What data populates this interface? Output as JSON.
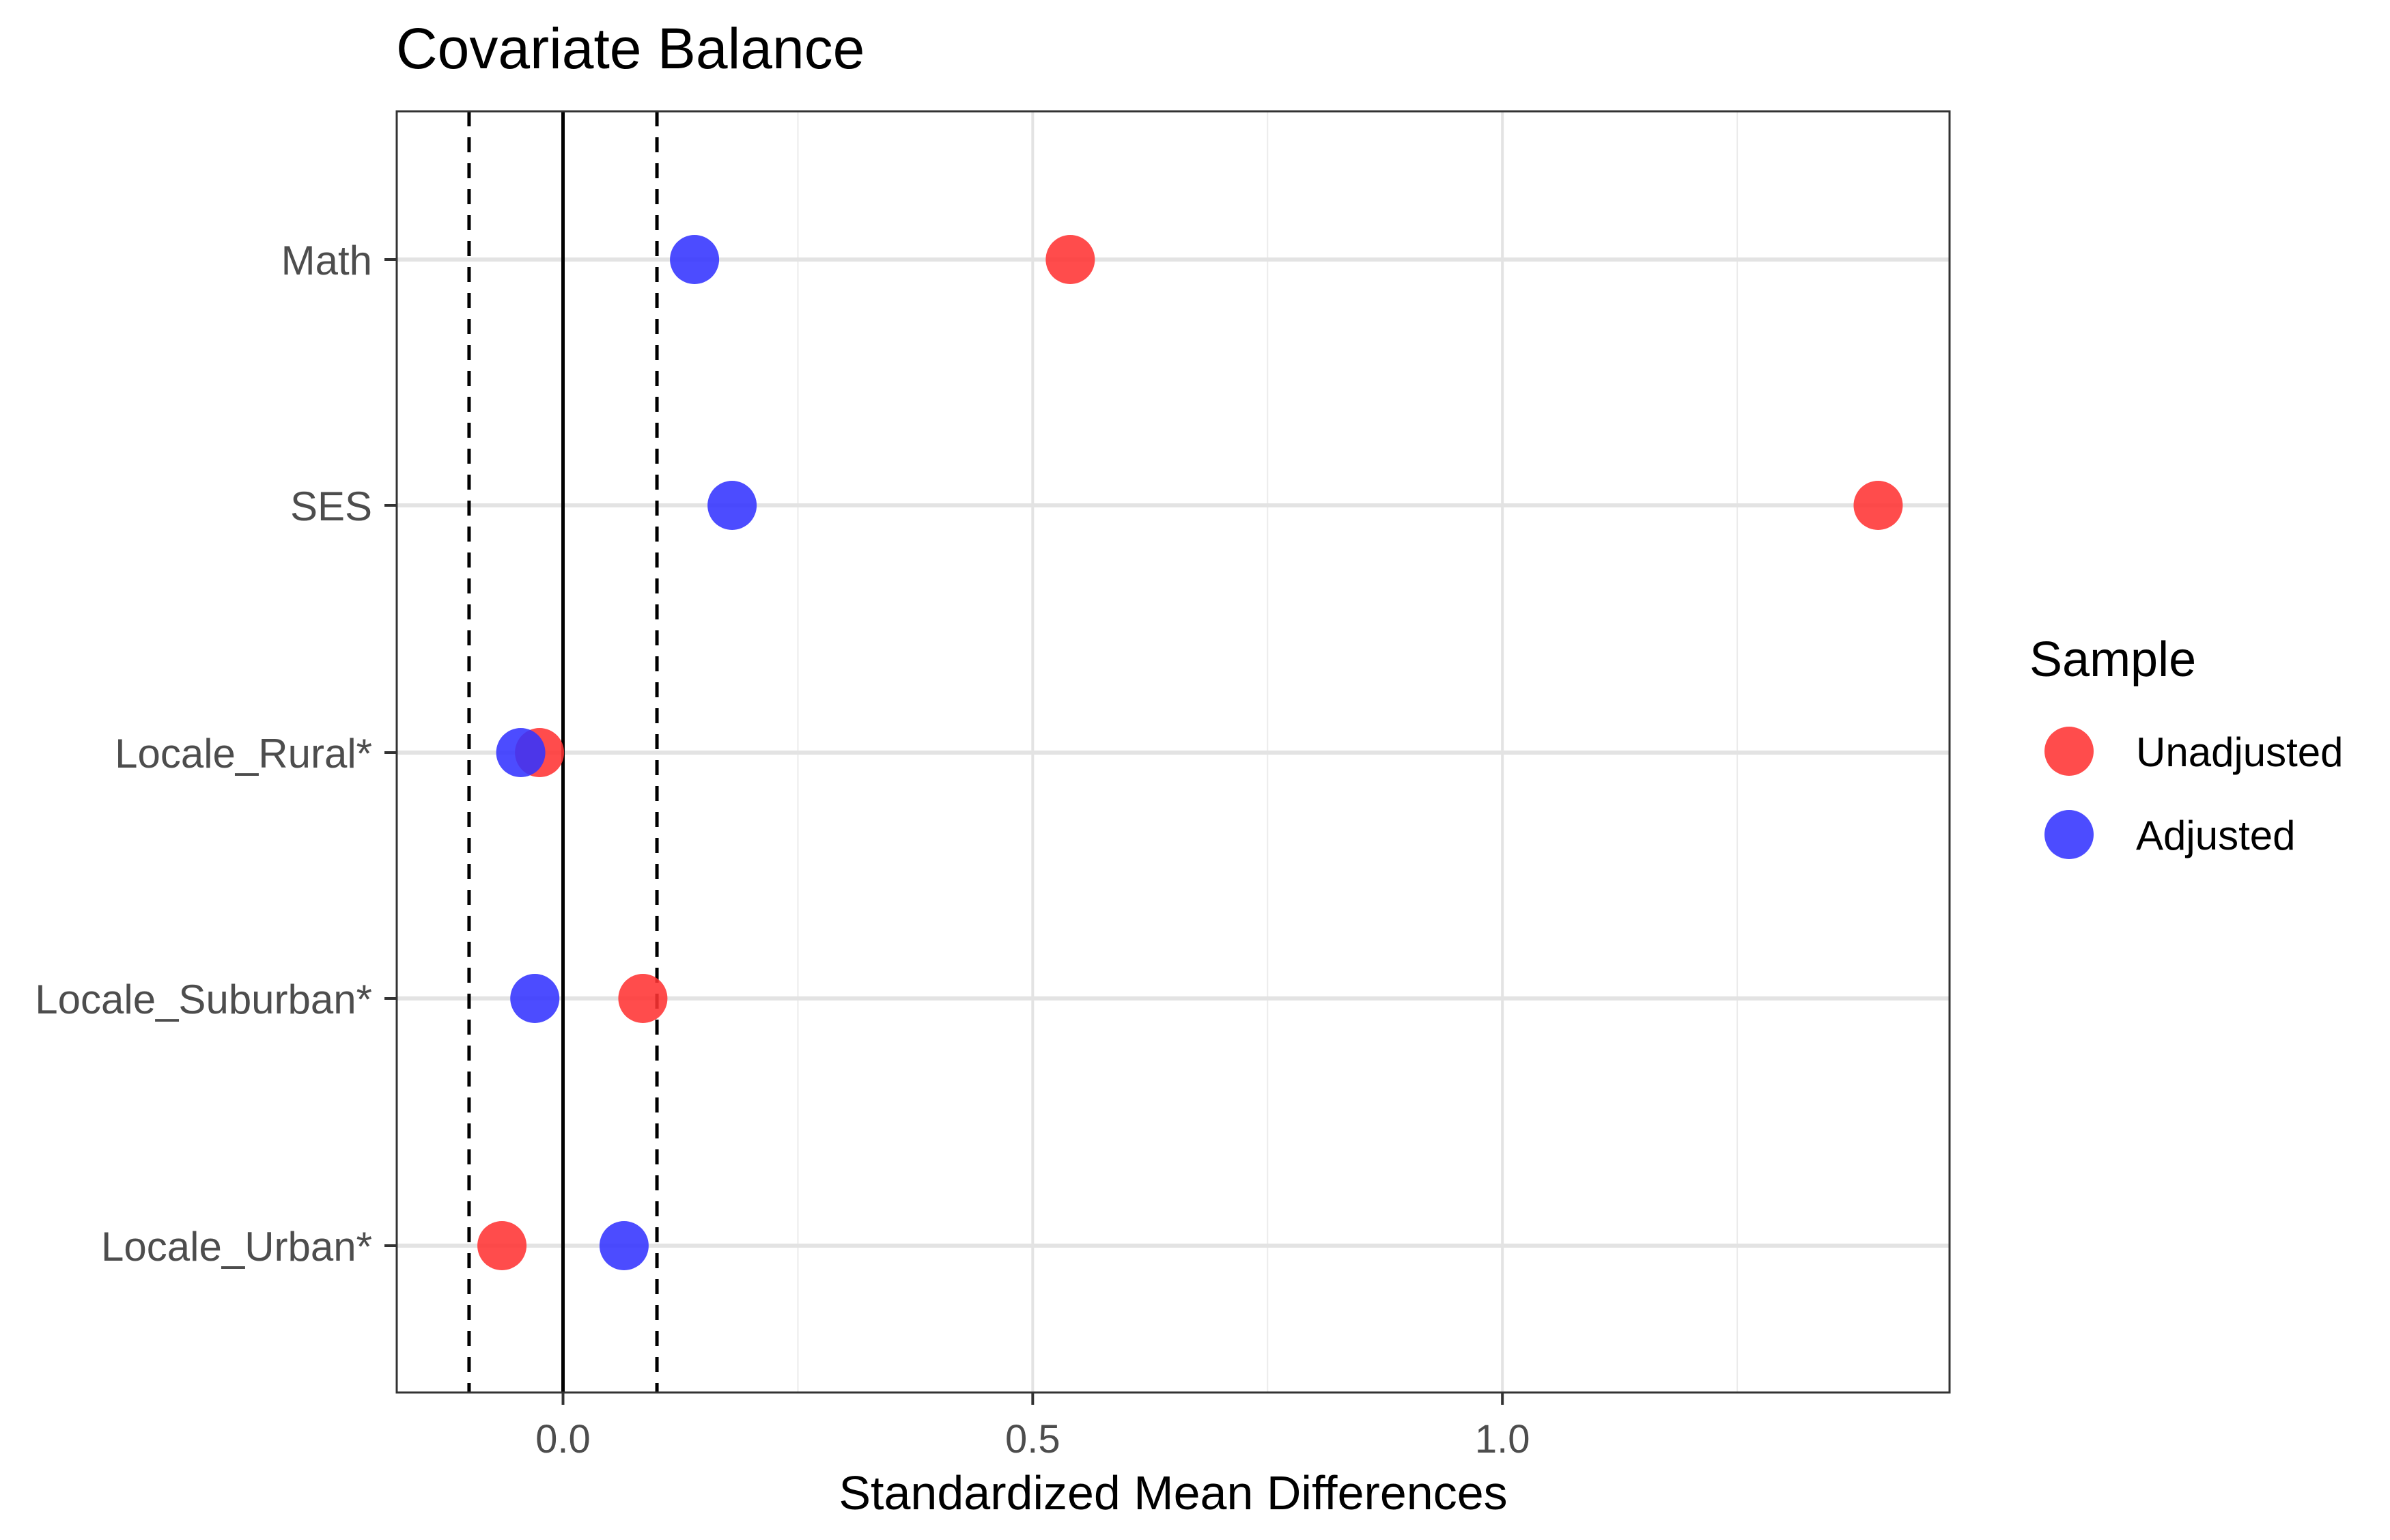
{
  "chart_data": {
    "type": "scatter",
    "title": "Covariate Balance",
    "xlabel": "Standardized Mean Differences",
    "ylabel": "",
    "xlim": [
      -0.177,
      1.476
    ],
    "x_ticks": [
      0.0,
      0.5,
      1.0
    ],
    "x_tick_labels": [
      "0.0",
      "0.5",
      "1.0"
    ],
    "categories": [
      "Math",
      "SES",
      "Locale_Rural*",
      "Locale_Suburban*",
      "Locale_Urban*"
    ],
    "series": [
      {
        "name": "Unadjusted",
        "color": "#ff3333",
        "values": [
          0.54,
          1.4,
          -0.025,
          0.085,
          -0.065
        ]
      },
      {
        "name": "Adjusted",
        "color": "#3333ff",
        "values": [
          0.14,
          0.18,
          -0.045,
          -0.03,
          0.065
        ]
      }
    ],
    "reference_lines": {
      "solid": [
        0
      ],
      "dashed": [
        -0.1,
        0.1
      ]
    },
    "grid": true,
    "legend": {
      "title": "Sample",
      "position": "right"
    }
  }
}
